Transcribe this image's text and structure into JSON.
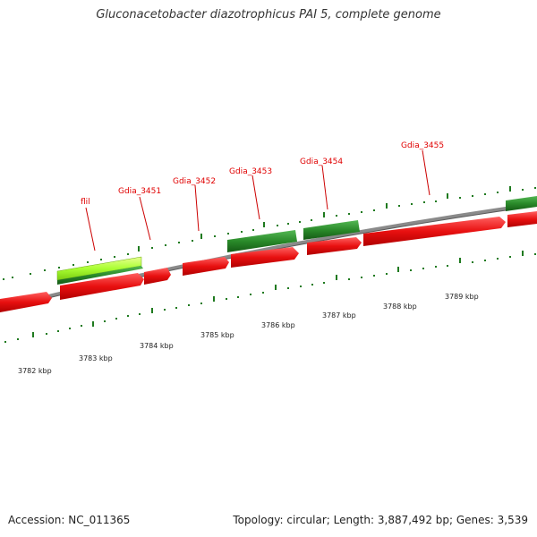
{
  "header": {
    "title": "Gluconacetobacter diazotrophicus PAI 5, complete genome"
  },
  "footer": {
    "accession": "Accession: NC_011365",
    "summary": "Topology: circular; Length: 3,887,492 bp; Genes: 3,539"
  },
  "genes": [
    {
      "name": "flil"
    },
    {
      "name": "Gdia_3451"
    },
    {
      "name": "Gdia_3452"
    },
    {
      "name": "Gdia_3453"
    },
    {
      "name": "Gdia_3454"
    },
    {
      "name": "Gdia_3455"
    }
  ],
  "scale": [
    "3782 kbp",
    "3783 kbp",
    "3784 kbp",
    "3785 kbp",
    "3786 kbp",
    "3787 kbp",
    "3788 kbp",
    "3789 kbp"
  ],
  "colors": {
    "forward_gene": "#e01010",
    "reverse_gene": "#2a8a2a",
    "highlight_gene": "#aaff33",
    "backbone": "#808080",
    "tick": "#1f7a1f",
    "label": "#e00000"
  }
}
